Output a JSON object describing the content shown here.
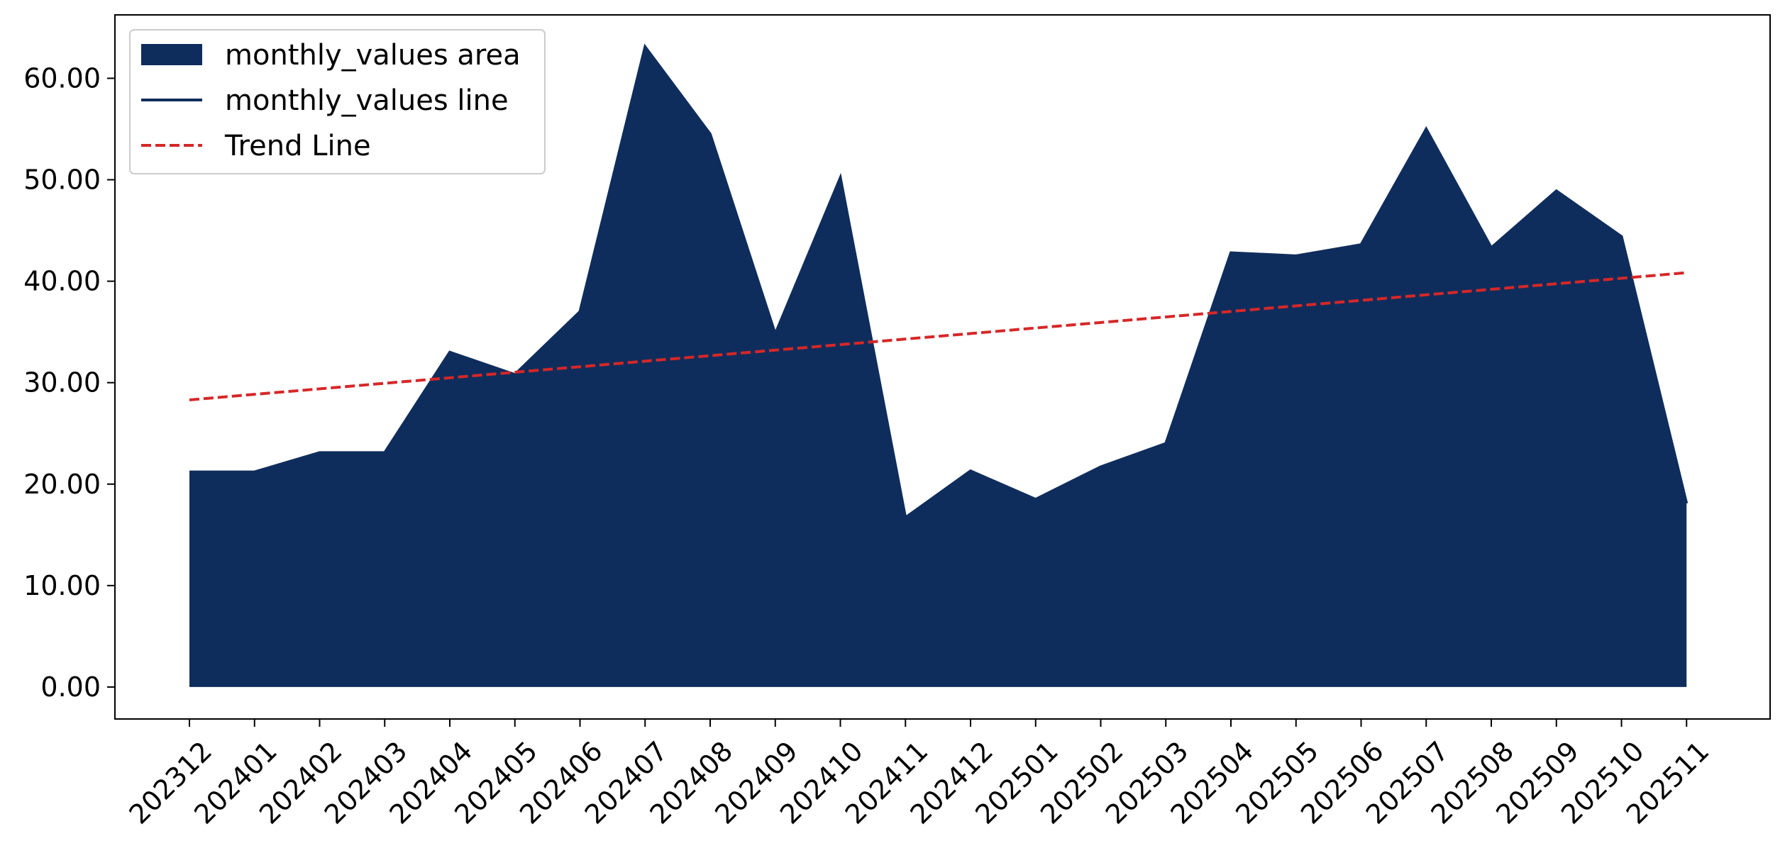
{
  "chart_data": {
    "type": "area",
    "title": "",
    "xlabel": "",
    "ylabel": "",
    "categories": [
      "202312",
      "202401",
      "202402",
      "202403",
      "202404",
      "202405",
      "202406",
      "202407",
      "202408",
      "202409",
      "202410",
      "202411",
      "202412",
      "202501",
      "202502",
      "202503",
      "202504",
      "202505",
      "202506",
      "202507",
      "202508",
      "202509",
      "202510",
      "202511"
    ],
    "series": [
      {
        "name": "monthly_values area",
        "kind": "area",
        "color": "#0f2d5c",
        "values": [
          21.2,
          21.2,
          23.1,
          23.1,
          33.0,
          30.8,
          37.0,
          63.1,
          54.5,
          34.8,
          50.2,
          16.7,
          21.3,
          18.5,
          21.7,
          24.0,
          42.8,
          42.5,
          43.6,
          55.0,
          43.3,
          48.9,
          44.4,
          18.1
        ]
      },
      {
        "name": "monthly_values line",
        "kind": "line",
        "color": "#0f2d5c",
        "values": [
          21.2,
          21.2,
          23.1,
          23.1,
          33.0,
          30.8,
          37.0,
          63.1,
          54.5,
          34.8,
          50.2,
          16.7,
          21.3,
          18.5,
          21.7,
          24.0,
          42.8,
          42.5,
          43.6,
          55.0,
          43.3,
          48.9,
          44.4,
          18.1
        ]
      },
      {
        "name": "Trend Line",
        "kind": "dashed-line",
        "color": "#d62728",
        "values": [
          28.3,
          28.85,
          29.39,
          29.94,
          30.48,
          31.03,
          31.57,
          32.12,
          32.66,
          33.21,
          33.75,
          34.3,
          34.84,
          35.39,
          35.93,
          36.48,
          37.02,
          37.57,
          38.11,
          38.66,
          39.2,
          39.75,
          40.29,
          40.84
        ]
      }
    ],
    "yticks": [
      "0.00",
      "10.00",
      "20.00",
      "30.00",
      "40.00",
      "50.00",
      "60.00"
    ],
    "ylim": [
      -3.15,
      66.25
    ],
    "grid": false,
    "legend_position": "upper-left"
  }
}
